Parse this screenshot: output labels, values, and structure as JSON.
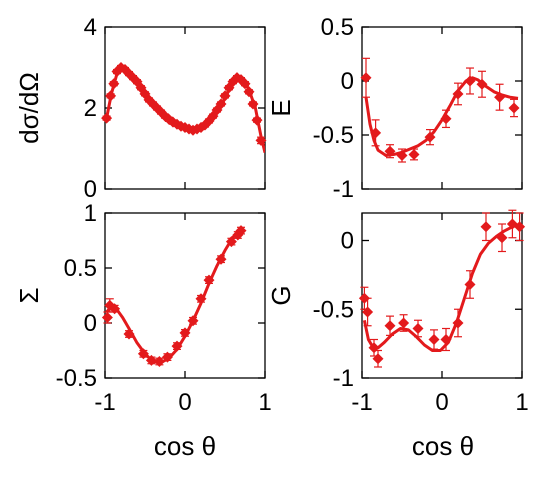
{
  "figure": {
    "xlabel": "cos θ",
    "colors": {
      "data": "#e31a1c",
      "axes": "#000000"
    },
    "marker": "diamond"
  },
  "chart_data": [
    {
      "id": "dsigma",
      "type": "scatter",
      "ylabel": "dσ/dΩ",
      "xlim": [
        -1,
        1
      ],
      "ylim": [
        0,
        4
      ],
      "xticks": [],
      "yticks": [
        0,
        2,
        4
      ],
      "ytick_labels": [
        "0",
        "2",
        "4"
      ],
      "grid": false,
      "legend": "none",
      "fit_curve": [
        [
          -0.98,
          1.75
        ],
        [
          -0.92,
          2.35
        ],
        [
          -0.85,
          2.85
        ],
        [
          -0.78,
          2.95
        ],
        [
          -0.7,
          2.85
        ],
        [
          -0.6,
          2.6
        ],
        [
          -0.5,
          2.3
        ],
        [
          -0.4,
          2.05
        ],
        [
          -0.3,
          1.85
        ],
        [
          -0.2,
          1.7
        ],
        [
          -0.1,
          1.58
        ],
        [
          0.0,
          1.5
        ],
        [
          0.1,
          1.45
        ],
        [
          0.2,
          1.5
        ],
        [
          0.3,
          1.65
        ],
        [
          0.4,
          1.9
        ],
        [
          0.5,
          2.25
        ],
        [
          0.58,
          2.6
        ],
        [
          0.65,
          2.75
        ],
        [
          0.72,
          2.7
        ],
        [
          0.8,
          2.45
        ],
        [
          0.88,
          2.0
        ],
        [
          0.95,
          1.3
        ],
        [
          1.0,
          0.9
        ]
      ],
      "points": [
        [
          -0.98,
          1.75,
          0.05
        ],
        [
          -0.93,
          2.3,
          0.05
        ],
        [
          -0.89,
          2.6,
          0.05
        ],
        [
          -0.85,
          2.9,
          0.05
        ],
        [
          -0.8,
          3.0,
          0.05
        ],
        [
          -0.75,
          2.95,
          0.05
        ],
        [
          -0.7,
          2.85,
          0.05
        ],
        [
          -0.65,
          2.75,
          0.05
        ],
        [
          -0.6,
          2.65,
          0.05
        ],
        [
          -0.55,
          2.5,
          0.05
        ],
        [
          -0.5,
          2.35,
          0.05
        ],
        [
          -0.45,
          2.2,
          0.05
        ],
        [
          -0.4,
          2.1,
          0.05
        ],
        [
          -0.35,
          2.0,
          0.05
        ],
        [
          -0.3,
          1.9,
          0.05
        ],
        [
          -0.25,
          1.8,
          0.05
        ],
        [
          -0.2,
          1.72,
          0.05
        ],
        [
          -0.15,
          1.65,
          0.05
        ],
        [
          -0.1,
          1.6,
          0.05
        ],
        [
          -0.05,
          1.55,
          0.05
        ],
        [
          0.0,
          1.52,
          0.05
        ],
        [
          0.05,
          1.48,
          0.05
        ],
        [
          0.1,
          1.45,
          0.05
        ],
        [
          0.15,
          1.48,
          0.05
        ],
        [
          0.2,
          1.52,
          0.05
        ],
        [
          0.25,
          1.58,
          0.05
        ],
        [
          0.3,
          1.68,
          0.05
        ],
        [
          0.35,
          1.8,
          0.05
        ],
        [
          0.4,
          1.95,
          0.05
        ],
        [
          0.45,
          2.1,
          0.05
        ],
        [
          0.5,
          2.3,
          0.05
        ],
        [
          0.55,
          2.5,
          0.05
        ],
        [
          0.6,
          2.65,
          0.05
        ],
        [
          0.65,
          2.75,
          0.05
        ],
        [
          0.7,
          2.7,
          0.05
        ],
        [
          0.75,
          2.6,
          0.05
        ],
        [
          0.8,
          2.4,
          0.05
        ],
        [
          0.85,
          2.1,
          0.05
        ],
        [
          0.9,
          1.7,
          0.05
        ],
        [
          0.95,
          1.2,
          0.08
        ]
      ]
    },
    {
      "id": "E",
      "type": "scatter",
      "ylabel": "E",
      "xlim": [
        -1,
        1
      ],
      "ylim": [
        -1,
        0.5
      ],
      "xticks": [],
      "yticks": [
        -1,
        -0.5,
        0,
        0.5
      ],
      "ytick_labels": [
        "-1",
        "-0.5",
        "0",
        "0.5"
      ],
      "grid": false,
      "legend": "none",
      "fit_curve": [
        [
          -0.95,
          -0.15
        ],
        [
          -0.9,
          -0.4
        ],
        [
          -0.85,
          -0.55
        ],
        [
          -0.8,
          -0.64
        ],
        [
          -0.7,
          -0.69
        ],
        [
          -0.6,
          -0.68
        ],
        [
          -0.5,
          -0.66
        ],
        [
          -0.4,
          -0.63
        ],
        [
          -0.3,
          -0.6
        ],
        [
          -0.2,
          -0.55
        ],
        [
          -0.1,
          -0.47
        ],
        [
          0.0,
          -0.36
        ],
        [
          0.1,
          -0.23
        ],
        [
          0.2,
          -0.09
        ],
        [
          0.3,
          0.0
        ],
        [
          0.38,
          0.03
        ],
        [
          0.45,
          0.01
        ],
        [
          0.55,
          -0.05
        ],
        [
          0.65,
          -0.1
        ],
        [
          0.75,
          -0.13
        ],
        [
          0.85,
          -0.15
        ],
        [
          0.95,
          -0.16
        ]
      ],
      "points": [
        [
          -0.95,
          0.03,
          0.18
        ],
        [
          -0.83,
          -0.48,
          0.12
        ],
        [
          -0.65,
          -0.65,
          0.06
        ],
        [
          -0.5,
          -0.69,
          0.06
        ],
        [
          -0.35,
          -0.68,
          0.05
        ],
        [
          -0.15,
          -0.52,
          0.07
        ],
        [
          0.05,
          -0.35,
          0.08
        ],
        [
          0.2,
          -0.12,
          0.1
        ],
        [
          0.35,
          0.0,
          0.12
        ],
        [
          0.5,
          -0.03,
          0.12
        ],
        [
          0.72,
          -0.15,
          0.12
        ],
        [
          0.9,
          -0.25,
          0.08
        ]
      ]
    },
    {
      "id": "Sigma",
      "type": "scatter",
      "ylabel": "Σ",
      "xlim": [
        -1,
        1
      ],
      "ylim": [
        -0.5,
        1
      ],
      "xticks": [
        -1,
        0,
        1
      ],
      "xtick_labels": [
        "-1",
        "0",
        "1"
      ],
      "yticks": [
        -0.5,
        0,
        0.5,
        1
      ],
      "ytick_labels": [
        "-0.5",
        "0",
        "0.5",
        "1"
      ],
      "grid": false,
      "legend": "none",
      "fit_curve": [
        [
          -0.98,
          0.1
        ],
        [
          -0.92,
          0.15
        ],
        [
          -0.85,
          0.12
        ],
        [
          -0.78,
          0.05
        ],
        [
          -0.7,
          -0.05
        ],
        [
          -0.6,
          -0.18
        ],
        [
          -0.5,
          -0.28
        ],
        [
          -0.4,
          -0.35
        ],
        [
          -0.3,
          -0.36
        ],
        [
          -0.2,
          -0.32
        ],
        [
          -0.1,
          -0.24
        ],
        [
          0.0,
          -0.12
        ],
        [
          0.1,
          0.02
        ],
        [
          0.2,
          0.18
        ],
        [
          0.3,
          0.36
        ],
        [
          0.4,
          0.52
        ],
        [
          0.5,
          0.66
        ],
        [
          0.6,
          0.78
        ],
        [
          0.68,
          0.84
        ]
      ],
      "points": [
        [
          -0.97,
          0.05,
          0.05
        ],
        [
          -0.94,
          0.16,
          0.06
        ],
        [
          -0.88,
          0.13,
          0.03
        ],
        [
          -0.7,
          -0.1,
          0.03
        ],
        [
          -0.52,
          -0.28,
          0.03
        ],
        [
          -0.42,
          -0.34,
          0.03
        ],
        [
          -0.32,
          -0.35,
          0.03
        ],
        [
          -0.22,
          -0.31,
          0.03
        ],
        [
          -0.1,
          -0.21,
          0.03
        ],
        [
          0.0,
          -0.09,
          0.03
        ],
        [
          0.1,
          0.02,
          0.03
        ],
        [
          0.2,
          0.22,
          0.03
        ],
        [
          0.3,
          0.39,
          0.03
        ],
        [
          0.45,
          0.58,
          0.03
        ],
        [
          0.58,
          0.74,
          0.03
        ],
        [
          0.66,
          0.8,
          0.03
        ],
        [
          0.7,
          0.84,
          0.03
        ]
      ]
    },
    {
      "id": "G",
      "type": "scatter",
      "ylabel": "G",
      "xlim": [
        -1,
        1
      ],
      "ylim": [
        -1,
        0.2
      ],
      "xticks": [
        -1,
        0,
        1
      ],
      "xtick_labels": [
        "-1",
        "0",
        "1"
      ],
      "yticks": [
        -1,
        -0.5,
        0
      ],
      "ytick_labels": [
        "-1",
        "-0.5",
        "0"
      ],
      "grid": false,
      "legend": "none",
      "fit_curve": [
        [
          -0.97,
          -0.58
        ],
        [
          -0.92,
          -0.72
        ],
        [
          -0.86,
          -0.78
        ],
        [
          -0.8,
          -0.78
        ],
        [
          -0.72,
          -0.74
        ],
        [
          -0.62,
          -0.68
        ],
        [
          -0.52,
          -0.64
        ],
        [
          -0.42,
          -0.65
        ],
        [
          -0.32,
          -0.7
        ],
        [
          -0.22,
          -0.76
        ],
        [
          -0.12,
          -0.8
        ],
        [
          -0.02,
          -0.8
        ],
        [
          0.08,
          -0.74
        ],
        [
          0.18,
          -0.6
        ],
        [
          0.28,
          -0.42
        ],
        [
          0.38,
          -0.24
        ],
        [
          0.48,
          -0.1
        ],
        [
          0.58,
          -0.02
        ],
        [
          0.68,
          0.03
        ],
        [
          0.78,
          0.07
        ],
        [
          0.88,
          0.1
        ],
        [
          0.98,
          0.12
        ]
      ],
      "points": [
        [
          -0.97,
          -0.42,
          0.08
        ],
        [
          -0.93,
          -0.52,
          0.1
        ],
        [
          -0.85,
          -0.78,
          0.06
        ],
        [
          -0.8,
          -0.86,
          0.06
        ],
        [
          -0.65,
          -0.62,
          0.07
        ],
        [
          -0.48,
          -0.6,
          0.06
        ],
        [
          -0.3,
          -0.64,
          0.06
        ],
        [
          -0.1,
          -0.72,
          0.07
        ],
        [
          0.05,
          -0.72,
          0.08
        ],
        [
          0.2,
          -0.6,
          0.1
        ],
        [
          0.35,
          -0.32,
          0.1
        ],
        [
          0.55,
          0.1,
          0.1
        ],
        [
          0.75,
          0.02,
          0.1
        ],
        [
          0.88,
          0.12,
          0.1
        ],
        [
          0.97,
          0.1,
          0.1
        ]
      ]
    }
  ]
}
